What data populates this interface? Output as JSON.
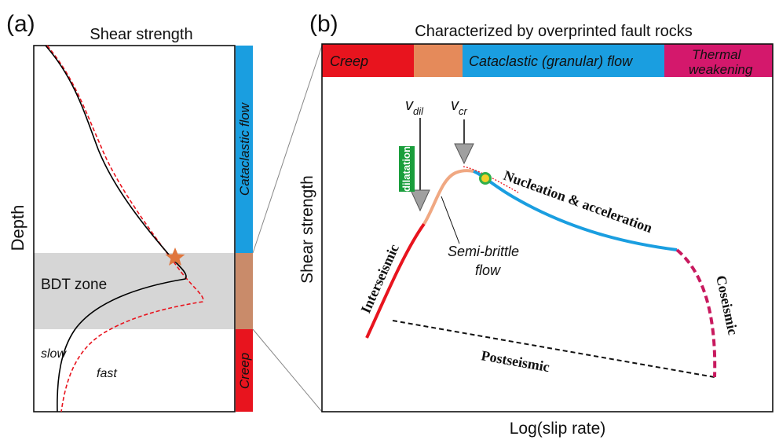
{
  "panel_a": {
    "label": "(a)",
    "title": "Shear strength",
    "y_axis_label": "Depth",
    "zone_label": "BDT zone",
    "curve_labels": {
      "slow": "slow",
      "fast": "fast"
    },
    "bar_labels": {
      "cataclastic": "Cataclastic flow",
      "creep": "Creep"
    },
    "colors": {
      "cataclastic": "#1a9ee0",
      "bdt": "#c98b6a",
      "creep": "#e8141e",
      "zone": "#d6d6d6",
      "star": "#e0763e",
      "fast_curve": "#e8141e",
      "slow_curve": "#000000"
    }
  },
  "panel_b": {
    "label": "(b)",
    "title": "Characterized by overprinted fault rocks",
    "x_axis_label": "Log(slip rate)",
    "y_axis_label": "Shear strength",
    "band": {
      "creep": "Creep",
      "cataclastic": "Cataclastic (granular) flow",
      "thermal_line1": "Thermal",
      "thermal_line2": "weakening"
    },
    "markers": {
      "v_dil": "v",
      "v_dil_sub": "dil",
      "v_cr": "v",
      "v_cr_sub": "cr",
      "dilatation": "dilatation"
    },
    "annotations": {
      "semi_brittle_line1": "Semi-brittle",
      "semi_brittle_line2": "flow",
      "nucleation": "Nucleation & acceleration",
      "interseismic": "Interseismic",
      "coseismic": "Coseismic",
      "postseismic": "Postseismic"
    },
    "colors": {
      "creep": "#e8141e",
      "semi": "#e58a5a",
      "cataclastic": "#1a9ee0",
      "thermal": "#d4186c",
      "dilatation": "#1a9e3c",
      "semi_curve": "#f0a882",
      "coseismic_curve": "#c8195e",
      "green_dot": "#2fae4a",
      "yellow_dot": "#f2d02a"
    }
  }
}
